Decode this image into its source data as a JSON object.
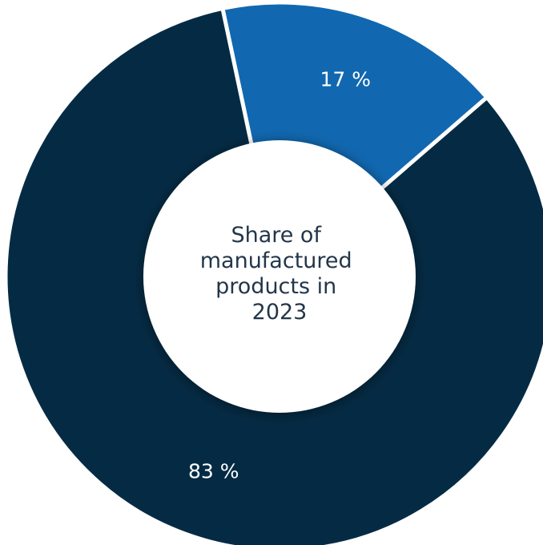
{
  "chart_data": {
    "type": "pie",
    "variant": "donut",
    "title": "Share of manufactured products in 2023",
    "title_lines": [
      "Share of",
      "manufactured",
      "products in",
      "2023"
    ],
    "categories": [
      "",
      ""
    ],
    "values": [
      17,
      83
    ],
    "value_labels": [
      "17 %",
      "83 %"
    ],
    "colors": [
      "#1168b0",
      "#052b44"
    ],
    "legend": "none"
  }
}
